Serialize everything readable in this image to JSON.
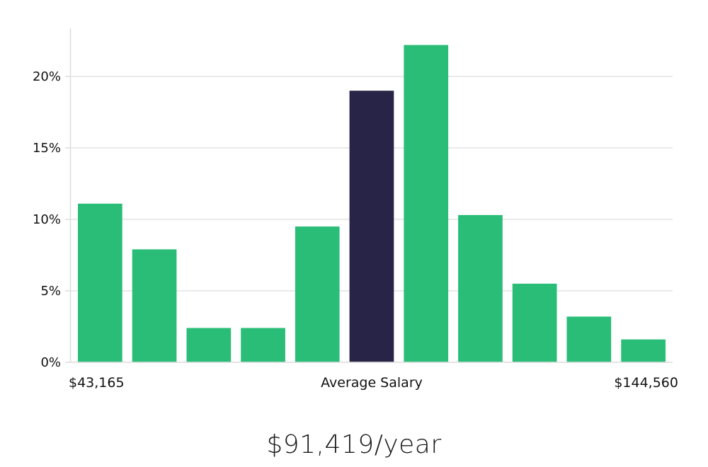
{
  "chart_data": {
    "type": "bar",
    "categories": [
      "",
      "",
      "",
      "",
      "",
      "",
      "",
      "",
      "",
      "",
      ""
    ],
    "values": [
      11.1,
      7.9,
      2.4,
      2.4,
      9.5,
      19.0,
      22.2,
      10.3,
      5.5,
      3.2,
      1.6
    ],
    "highlight_index": 5,
    "y_unit": "%",
    "ylim": [
      0,
      23.5
    ],
    "yticks": [
      0,
      5,
      10,
      15,
      20
    ],
    "ytick_labels": [
      "0%",
      "5%",
      "10%",
      "15%",
      "20%"
    ],
    "x_min_label": "$43,165",
    "x_center_label": "Average Salary",
    "x_max_label": "$144,560",
    "grid": true,
    "colors": {
      "bar": "#2abd78",
      "highlight": "#282447",
      "grid": "#e3e3e3"
    }
  },
  "summary": {
    "average_salary": "$91,419/year"
  }
}
